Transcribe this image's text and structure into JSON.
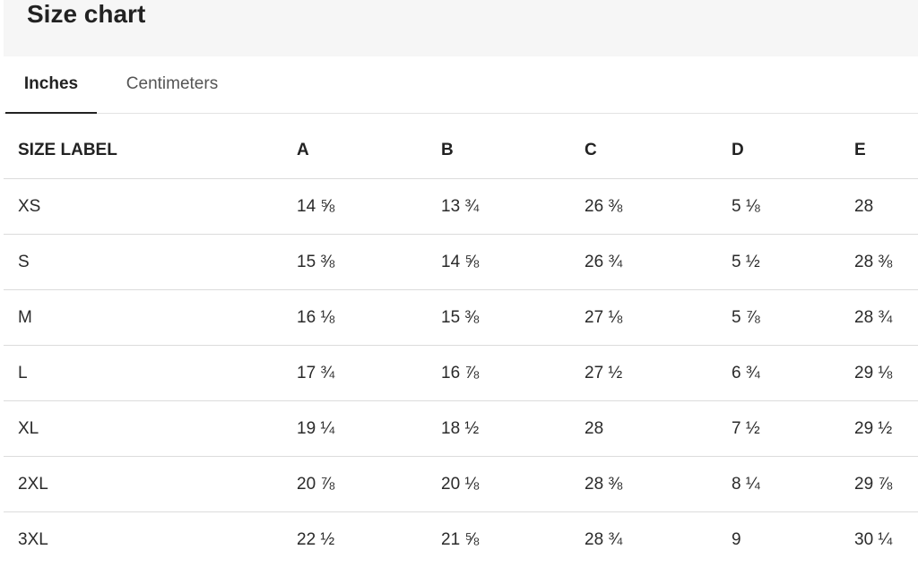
{
  "header": {
    "title": "Size chart"
  },
  "tabs": [
    {
      "label": "Inches",
      "active": true
    },
    {
      "label": "Centimeters",
      "active": false
    }
  ],
  "table": {
    "columns": [
      "SIZE LABEL",
      "A",
      "B",
      "C",
      "D",
      "E"
    ],
    "rows": [
      [
        "XS",
        "14 ⅝",
        "13 ¾",
        "26 ⅜",
        "5 ⅛",
        "28"
      ],
      [
        "S",
        "15 ⅜",
        "14 ⅝",
        "26 ¾",
        "5 ½",
        "28 ⅜"
      ],
      [
        "M",
        "16 ⅛",
        "15 ⅜",
        "27 ⅛",
        "5 ⅞",
        "28 ¾"
      ],
      [
        "L",
        "17 ¾",
        "16 ⅞",
        "27 ½",
        "6 ¾",
        "29 ⅛"
      ],
      [
        "XL",
        "19 ¼",
        "18 ½",
        "28",
        "7 ½",
        "29 ½"
      ],
      [
        "2XL",
        "20 ⅞",
        "20 ⅛",
        "28 ⅜",
        "8 ¼",
        "29 ⅞"
      ],
      [
        "3XL",
        "22 ½",
        "21 ⅝",
        "28 ¾",
        "9",
        "30 ¼"
      ]
    ]
  }
}
